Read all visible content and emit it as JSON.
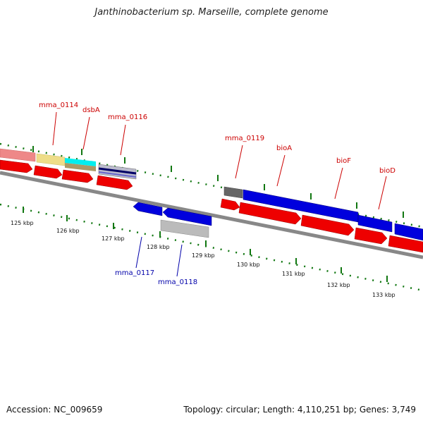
{
  "title": "Janthinobacterium sp. Marseille, complete genome",
  "accession": "Accession: NC_009659",
  "summary": "Topology: circular; Length: 4,110,251 bp; Genes: 3,749",
  "colors": {
    "gene_red": "#ee0000",
    "gene_blue": "#0000dd",
    "label_red": "#cc0000",
    "label_blue": "#0000aa",
    "tick_green": "#117711",
    "backbone": "#888888",
    "feat_salmon": "#ee8888",
    "feat_khaki": "#eedd88",
    "feat_cyan": "#00eeee",
    "feat_olive": "#aa9966",
    "feat_navy": "#000066",
    "feat_silver": "#bbbbbb",
    "feat_darkgray": "#555555"
  },
  "kbp_labels": [
    "125 kbp",
    "126 kbp",
    "127 kbp",
    "128 kbp",
    "129 kbp",
    "130 kbp",
    "131 kbp",
    "132 kbp",
    "133 kbp"
  ],
  "gene_labels_top": [
    "mma_0114",
    "dsbA",
    "mma_0116",
    "mma_0119",
    "bioA",
    "bioF",
    "bioD"
  ],
  "gene_labels_bottom": [
    "mma_0117",
    "mma_0118"
  ]
}
